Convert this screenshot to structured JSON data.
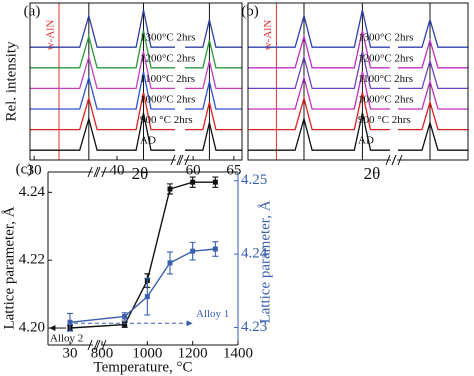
{
  "chart_data": [
    {
      "type": "line",
      "panel_label": "(a)",
      "y_label": "Rel. intensity",
      "x_label": "2θ",
      "xlim": [
        29.5,
        66
      ],
      "xbreak": [
        47,
        59
      ],
      "xticks": [
        30,
        40,
        60,
        65
      ],
      "ylim": [
        0,
        8
      ],
      "phase_line": {
        "label": "w-AlN",
        "x": 33,
        "color": "#e03030"
      },
      "ref_lines": [
        36.6,
        43.2,
        62
      ],
      "x": [
        29.5,
        35.5,
        36.6,
        37.6,
        42.3,
        43.2,
        44.1,
        47,
        53,
        59,
        61.2,
        62,
        62.8,
        66
      ],
      "series": [
        {
          "name": "AD",
          "color": "#111111",
          "values": [
            0.5,
            0.5,
            2.1,
            0.5,
            0.5,
            2.4,
            0.5,
            0.5,
            null,
            0.5,
            0.5,
            1.9,
            0.5,
            0.5
          ]
        },
        {
          "name": "900 °C  2hrs",
          "color": "#e02020",
          "values": [
            1.55,
            1.55,
            3.15,
            1.55,
            1.55,
            3.45,
            1.55,
            1.55,
            null,
            1.55,
            1.55,
            2.95,
            1.55,
            1.55
          ]
        },
        {
          "name": "1000°C  2hrs",
          "color": "#3050d0",
          "values": [
            2.6,
            2.6,
            4.2,
            2.6,
            2.6,
            4.5,
            2.6,
            2.6,
            null,
            2.6,
            2.6,
            4.0,
            2.6,
            2.6
          ]
        },
        {
          "name": "1100°C  2hrs",
          "color": "#c040c0",
          "values": [
            3.65,
            3.65,
            5.25,
            3.65,
            3.65,
            5.55,
            3.65,
            3.65,
            null,
            3.65,
            3.65,
            5.05,
            3.65,
            3.65
          ]
        },
        {
          "name": "1200°C  2hrs",
          "color": "#2a9a3a",
          "values": [
            4.7,
            4.7,
            6.3,
            4.7,
            4.7,
            6.6,
            4.7,
            4.7,
            null,
            4.7,
            4.7,
            6.1,
            4.7,
            4.7
          ]
        },
        {
          "name": "1300°C  2hrs",
          "color": "#3040a0",
          "values": [
            5.75,
            5.75,
            7.35,
            5.75,
            5.75,
            7.65,
            5.75,
            5.75,
            null,
            5.75,
            5.75,
            7.15,
            5.75,
            5.75
          ]
        }
      ]
    },
    {
      "type": "line",
      "panel_label": "(b)",
      "x_label": "2θ",
      "xlim": [
        29.5,
        66
      ],
      "xbreak": [
        47,
        59
      ],
      "ylim": [
        0,
        8
      ],
      "phase_line": {
        "label": "w-AlN",
        "x": 33,
        "color": "#e03030"
      },
      "ref_lines": [
        36.4,
        43.6,
        62.2
      ],
      "x": [
        29.5,
        35.3,
        36.4,
        37.4,
        42.6,
        43.6,
        44.6,
        47,
        53,
        59,
        61.4,
        62.2,
        63,
        66
      ],
      "series": [
        {
          "name": "AD",
          "color": "#111111",
          "values": [
            0.5,
            0.5,
            2.1,
            0.5,
            0.5,
            2.4,
            0.5,
            0.5,
            null,
            0.5,
            0.5,
            1.9,
            0.5,
            0.5
          ]
        },
        {
          "name": "900 °C  2hrs",
          "color": "#e02020",
          "values": [
            1.55,
            1.55,
            3.15,
            1.55,
            1.55,
            3.45,
            1.55,
            1.55,
            null,
            1.55,
            1.55,
            2.95,
            1.55,
            1.55
          ]
        },
        {
          "name": "1000°C  2hrs",
          "color": "#c030c0",
          "values": [
            2.6,
            2.6,
            4.2,
            2.6,
            2.6,
            4.5,
            2.6,
            2.6,
            null,
            2.6,
            2.6,
            4.0,
            2.6,
            2.6
          ]
        },
        {
          "name": "1100°C  2hrs",
          "color": "#7040c0",
          "values": [
            3.65,
            3.65,
            5.25,
            3.65,
            3.65,
            5.55,
            3.65,
            3.65,
            null,
            3.65,
            3.65,
            5.05,
            3.65,
            3.65
          ]
        },
        {
          "name": "1200°C  2hrs",
          "color": "#c030c0",
          "values": [
            4.7,
            4.7,
            6.3,
            4.7,
            4.7,
            6.6,
            4.7,
            4.7,
            null,
            4.7,
            4.7,
            6.1,
            4.7,
            4.7
          ]
        },
        {
          "name": "1300°C  2hrs",
          "color": "#3040b0",
          "values": [
            5.75,
            5.75,
            7.35,
            5.75,
            5.75,
            7.65,
            5.75,
            5.75,
            null,
            5.75,
            5.75,
            7.15,
            5.75,
            5.75
          ]
        }
      ]
    },
    {
      "type": "errorline",
      "panel_label": "(c)",
      "x_label": "Temperature, °C",
      "y_label": "Lattice parameter, Å",
      "y2_label": "Lattice parameter, Å",
      "xlim": [
        0,
        1400
      ],
      "xbreak": [
        60,
        800
      ],
      "xticks": [
        30,
        800,
        1000,
        1200,
        1400
      ],
      "ylim": [
        4.195,
        4.246
      ],
      "yticks": [
        {
          "value": 4.2,
          "label": "4.20"
        },
        4.22,
        4.24
      ],
      "y2lim": [
        4.2276,
        4.2512
      ],
      "y2ticks": [
        4.23,
        4.24,
        4.25
      ],
      "y2color": "#3a5fb0",
      "x": [
        30,
        900,
        1000,
        1100,
        1200,
        1300
      ],
      "series": [
        {
          "name": "Alloy 2",
          "color": "#111111",
          "values": [
            4.2,
            4.201,
            4.214,
            4.241,
            4.243,
            4.243
          ],
          "errors": [
            0.0008,
            0.0008,
            0.002,
            0.0015,
            0.0015,
            0.0015
          ]
        },
        {
          "name": "Alloy 1",
          "color": "#3a5fb0",
          "axis": "y2",
          "values": [
            4.2307,
            4.2315,
            4.2342,
            4.2388,
            4.2404,
            4.2407
          ],
          "errors": [
            0.0012,
            0.0005,
            0.0025,
            0.0015,
            0.0012,
            0.001
          ]
        }
      ]
    }
  ]
}
